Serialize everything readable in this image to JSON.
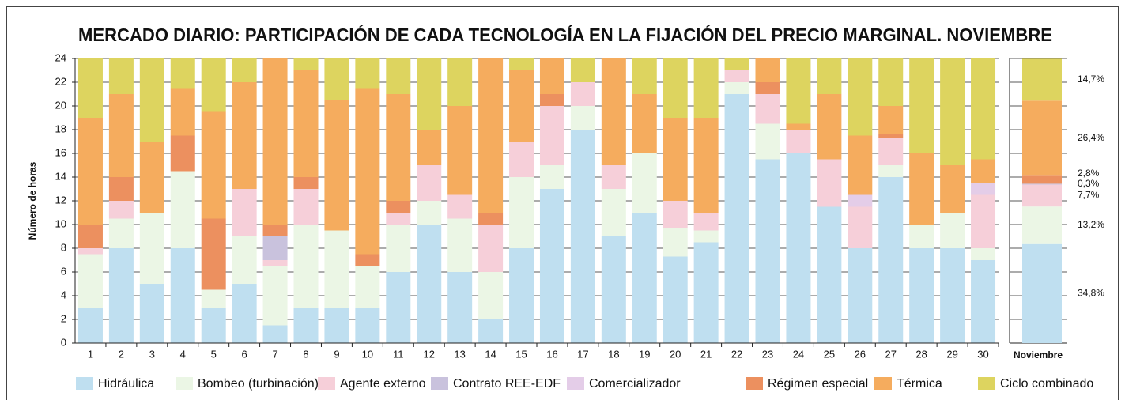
{
  "chart_data": {
    "type": "stacked-bar",
    "title": "MERCADO DIARIO: PARTICIPACIÓN DE CADA TECNOLOGÍA EN LA FIJACIÓN DEL PRECIO MARGINAL. NOVIEMBRE",
    "y_label": "Número de horas",
    "categories": [
      "1",
      "2",
      "3",
      "4",
      "5",
      "6",
      "7",
      "8",
      "9",
      "10",
      "11",
      "12",
      "13",
      "14",
      "15",
      "16",
      "17",
      "18",
      "19",
      "20",
      "21",
      "22",
      "23",
      "24",
      "25",
      "26",
      "27",
      "28",
      "29",
      "30"
    ],
    "ylim": [
      0,
      24
    ],
    "yticks": [
      0,
      2,
      4,
      6,
      8,
      10,
      12,
      14,
      16,
      18,
      20,
      22,
      24
    ],
    "grid": true,
    "legend": "bottom",
    "series": [
      {
        "name": "Hidráulica",
        "color": "#bfdff0",
        "values": [
          3,
          8,
          5,
          8,
          3,
          5,
          1.5,
          3,
          3,
          3,
          6,
          10,
          6,
          2,
          8,
          13,
          18,
          9,
          11,
          7.3,
          8.5,
          21,
          15.5,
          16,
          11.5,
          8,
          14,
          8,
          8,
          7
        ]
      },
      {
        "name": "Bombeo (turbinación)",
        "color": "#ebf6e5",
        "values": [
          4.5,
          2.5,
          6,
          6.5,
          1.5,
          4,
          5,
          7,
          6.5,
          3.5,
          4,
          2,
          4.5,
          4,
          6,
          2,
          2,
          4,
          5,
          2.4,
          1,
          1,
          3,
          0,
          0,
          0,
          1,
          2,
          3,
          1
        ]
      },
      {
        "name": "Agente externo",
        "color": "#f6cfd9",
        "values": [
          0.5,
          1.5,
          0,
          0,
          0,
          4,
          0.5,
          3,
          0,
          0,
          1,
          3,
          2,
          4,
          3,
          5,
          2,
          2,
          0,
          2.3,
          1.5,
          1,
          2.5,
          2,
          4,
          3.5,
          2.3,
          0,
          0,
          4.5
        ]
      },
      {
        "name": "Contrato REE-EDF",
        "color": "#c9c2dd",
        "values": [
          0,
          0,
          0,
          0,
          0,
          0,
          2,
          0,
          0,
          0,
          0,
          0,
          0,
          0,
          0,
          0,
          0,
          0,
          0,
          0,
          0,
          0,
          0,
          0,
          0,
          0,
          0,
          0,
          0,
          0
        ]
      },
      {
        "name": "Comercializador",
        "color": "#e4cde8",
        "values": [
          0,
          0,
          0,
          0,
          0,
          0,
          0,
          0,
          0,
          0,
          0,
          0,
          0,
          0,
          0,
          0,
          0,
          0,
          0,
          0,
          0,
          0,
          0,
          0,
          0,
          1,
          0,
          0,
          0,
          1
        ]
      },
      {
        "name": "Régimen especial",
        "color": "#ec905f",
        "values": [
          2,
          2,
          0,
          3,
          6,
          0,
          1,
          1,
          0,
          1,
          1,
          0,
          0,
          1,
          0,
          1,
          0,
          0,
          0,
          0,
          0,
          0,
          1,
          0,
          0,
          0,
          0.3,
          0,
          0,
          0
        ]
      },
      {
        "name": "Térmica",
        "color": "#f5ac5e",
        "values": [
          9,
          7,
          6,
          4,
          9,
          9,
          14,
          9,
          11,
          14,
          9,
          3,
          7.5,
          13,
          6,
          3,
          0,
          9,
          5,
          7,
          8,
          0,
          2,
          0.5,
          5.5,
          5,
          2.4,
          6,
          4,
          2
        ]
      },
      {
        "name": "Ciclo combinado",
        "color": "#ddd45f",
        "values": [
          5,
          3,
          7,
          2.5,
          4.5,
          2,
          0,
          1,
          3.5,
          2.5,
          3,
          6,
          4,
          0,
          1,
          0,
          2,
          0,
          3,
          5,
          5,
          1,
          0,
          5.5,
          3,
          6.5,
          4,
          8,
          9,
          8.5
        ]
      }
    ],
    "summary": {
      "category": "Noviembre",
      "ylim": [
        0,
        100
      ],
      "values": [
        34.8,
        13.2,
        7.7,
        0.3,
        null,
        2.8,
        26.4,
        14.7
      ],
      "value_labels": [
        "34,8%",
        "13,2%",
        "7,7%",
        "0,3%",
        null,
        "2,8%",
        "26,4%",
        "14,7%"
      ]
    }
  }
}
